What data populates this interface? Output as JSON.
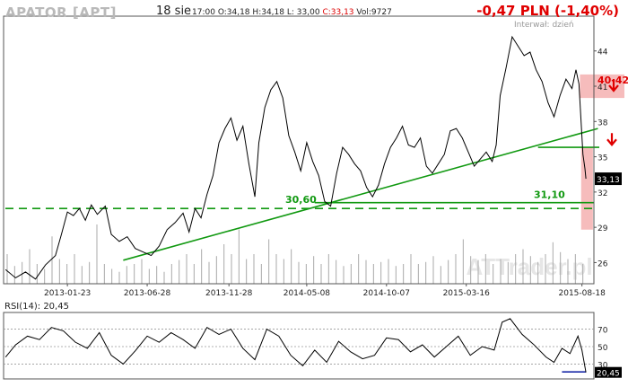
{
  "header": {
    "ticker": "APATOR [APT]",
    "date": "18 sie",
    "time": "17:00",
    "open": "O:34,18",
    "high": "H:34,18",
    "low": "L: 33,00",
    "close": "C:33,13",
    "volume": "Vol:9727",
    "change": "-0,47 PLN (-1,40%)",
    "interval": "Interwał: dzień"
  },
  "colors": {
    "price_line": "#000000",
    "trend_line": "#119911",
    "support_dashed": "#119911",
    "highlight": "#f4b0b0",
    "arrow": "#e00000",
    "volume": "#a9a9a9",
    "rsi_line": "#000000",
    "rsi_marker": "#1a2aa8"
  },
  "chart_data": [
    {
      "type": "line",
      "panel": "price",
      "title": "APATOR [APT]",
      "x_tick_labels": [
        "2013-01-23",
        "2013-06-28",
        "2013-11-28",
        "2014-05-08",
        "2014-10-07",
        "2015-03-16",
        "2015-08-18"
      ],
      "y_tick_labels": [
        "26",
        "29",
        "32",
        "35",
        "38",
        "41",
        "44"
      ],
      "ylim": [
        24.2,
        46.5
      ],
      "last_value_label": "33,13",
      "watermark": "ATTrader.pl",
      "series": [
        {
          "values": [
            [
              2012.75,
              25.4
            ],
            [
              2012.8,
              24.7
            ],
            [
              2012.85,
              25.2
            ],
            [
              2012.9,
              24.6
            ],
            [
              2012.95,
              25.8
            ],
            [
              2013.0,
              26.6
            ],
            [
              2013.03,
              28.4
            ],
            [
              2013.06,
              30.3
            ],
            [
              2013.09,
              30.0
            ],
            [
              2013.12,
              30.6
            ],
            [
              2013.15,
              29.6
            ],
            [
              2013.18,
              30.9
            ],
            [
              2013.21,
              30.1
            ],
            [
              2013.25,
              30.8
            ],
            [
              2013.28,
              28.4
            ],
            [
              2013.32,
              27.8
            ],
            [
              2013.36,
              28.2
            ],
            [
              2013.4,
              27.2
            ],
            [
              2013.44,
              26.9
            ],
            [
              2013.48,
              26.6
            ],
            [
              2013.52,
              27.4
            ],
            [
              2013.56,
              28.8
            ],
            [
              2013.6,
              29.4
            ],
            [
              2013.64,
              30.2
            ],
            [
              2013.67,
              28.6
            ],
            [
              2013.7,
              30.6
            ],
            [
              2013.73,
              29.8
            ],
            [
              2013.76,
              31.8
            ],
            [
              2013.79,
              33.4
            ],
            [
              2013.82,
              36.2
            ],
            [
              2013.85,
              37.4
            ],
            [
              2013.88,
              38.3
            ],
            [
              2013.91,
              36.4
            ],
            [
              2013.94,
              37.6
            ],
            [
              2013.97,
              34.4
            ],
            [
              2014.0,
              31.6
            ],
            [
              2014.02,
              36.2
            ],
            [
              2014.05,
              39.2
            ],
            [
              2014.08,
              40.7
            ],
            [
              2014.11,
              41.4
            ],
            [
              2014.14,
              40.0
            ],
            [
              2014.17,
              36.8
            ],
            [
              2014.2,
              35.4
            ],
            [
              2014.23,
              33.8
            ],
            [
              2014.26,
              36.2
            ],
            [
              2014.29,
              34.6
            ],
            [
              2014.32,
              33.4
            ],
            [
              2014.35,
              31.2
            ],
            [
              2014.38,
              30.8
            ],
            [
              2014.41,
              33.6
            ],
            [
              2014.44,
              35.8
            ],
            [
              2014.47,
              35.2
            ],
            [
              2014.5,
              34.4
            ],
            [
              2014.53,
              33.8
            ],
            [
              2014.56,
              32.4
            ],
            [
              2014.59,
              31.6
            ],
            [
              2014.62,
              32.6
            ],
            [
              2014.65,
              34.4
            ],
            [
              2014.68,
              35.8
            ],
            [
              2014.71,
              36.6
            ],
            [
              2014.74,
              37.6
            ],
            [
              2014.77,
              36.0
            ],
            [
              2014.8,
              35.8
            ],
            [
              2014.83,
              36.6
            ],
            [
              2014.86,
              34.2
            ],
            [
              2014.89,
              33.6
            ],
            [
              2014.92,
              34.4
            ],
            [
              2014.95,
              35.2
            ],
            [
              2014.98,
              37.2
            ],
            [
              2015.01,
              37.4
            ],
            [
              2015.04,
              36.6
            ],
            [
              2015.07,
              35.4
            ],
            [
              2015.1,
              34.2
            ],
            [
              2015.13,
              34.8
            ],
            [
              2015.16,
              35.4
            ],
            [
              2015.19,
              34.6
            ],
            [
              2015.21,
              36.0
            ],
            [
              2015.23,
              40.2
            ],
            [
              2015.26,
              42.6
            ],
            [
              2015.29,
              45.2
            ],
            [
              2015.32,
              44.4
            ],
            [
              2015.35,
              43.6
            ],
            [
              2015.38,
              43.9
            ],
            [
              2015.41,
              42.4
            ],
            [
              2015.44,
              41.4
            ],
            [
              2015.47,
              39.6
            ],
            [
              2015.5,
              38.4
            ],
            [
              2015.53,
              40.2
            ],
            [
              2015.56,
              41.6
            ],
            [
              2015.59,
              40.8
            ],
            [
              2015.61,
              42.4
            ],
            [
              2015.625,
              41.2
            ],
            [
              2015.635,
              38.2
            ],
            [
              2015.645,
              35.2
            ],
            [
              2015.655,
              34.0
            ],
            [
              2015.66,
              33.13
            ]
          ]
        }
      ],
      "annotations": [
        {
          "type": "hline",
          "y": 30.6,
          "style": "dashed",
          "label": "30,60"
        },
        {
          "type": "hline",
          "y": 31.1,
          "style": "solid",
          "label": "31,10"
        },
        {
          "type": "hline",
          "y": 35.8,
          "style": "solid"
        },
        {
          "type": "trendline",
          "from": [
            2013.34,
            26.2
          ],
          "to": [
            2015.72,
            37.4
          ]
        },
        {
          "type": "band",
          "y": [
            40.0,
            42.0
          ],
          "label": "40-42"
        },
        {
          "type": "arrow",
          "y": 41.0,
          "direction": "down"
        },
        {
          "type": "arrow",
          "y": 36.4,
          "direction": "down"
        },
        {
          "type": "rect",
          "x": [
            2015.636,
            2015.695
          ],
          "y": [
            28.8,
            35.8
          ]
        }
      ]
    },
    {
      "type": "bar",
      "panel": "volume",
      "note": "volume bars drawn along bottom of price panel",
      "values": [
        0.3,
        0.18,
        0.22,
        0.35,
        0.2,
        0.15,
        0.48,
        0.25,
        0.2,
        0.3,
        0.18,
        0.22,
        0.6,
        0.2,
        0.15,
        0.12,
        0.18,
        0.2,
        0.25,
        0.15,
        0.18,
        0.12,
        0.2,
        0.24,
        0.3,
        0.2,
        0.35,
        0.22,
        0.28,
        0.4,
        0.3,
        0.55,
        0.25,
        0.3,
        0.2,
        0.45,
        0.3,
        0.25,
        0.35,
        0.22,
        0.2,
        0.28,
        0.2,
        0.3,
        0.24,
        0.18,
        0.2,
        0.3,
        0.24,
        0.2,
        0.22,
        0.25,
        0.18,
        0.2,
        0.3,
        0.2,
        0.22,
        0.28,
        0.18,
        0.24,
        0.3,
        0.45,
        0.28,
        0.24,
        0.3,
        0.2,
        0.25,
        0.22,
        0.3,
        0.35,
        0.28,
        0.22,
        0.3,
        0.42,
        0.32,
        0.25,
        0.3,
        0.2
      ]
    },
    {
      "type": "line",
      "panel": "rsi",
      "title": "RSI(14): 20,45",
      "y_tick_labels": [
        "70",
        "50",
        "30"
      ],
      "ylim": [
        15,
        85
      ],
      "hlines": [
        70,
        50,
        30
      ],
      "last_value_label": "20,45",
      "series": [
        {
          "values": [
            [
              2012.75,
              38
            ],
            [
              2012.8,
              52
            ],
            [
              2012.86,
              62
            ],
            [
              2012.92,
              58
            ],
            [
              2012.98,
              72
            ],
            [
              2013.04,
              68
            ],
            [
              2013.1,
              55
            ],
            [
              2013.16,
              48
            ],
            [
              2013.22,
              66
            ],
            [
              2013.28,
              40
            ],
            [
              2013.34,
              30
            ],
            [
              2013.4,
              45
            ],
            [
              2013.46,
              62
            ],
            [
              2013.52,
              55
            ],
            [
              2013.58,
              66
            ],
            [
              2013.64,
              58
            ],
            [
              2013.7,
              48
            ],
            [
              2013.76,
              72
            ],
            [
              2013.82,
              64
            ],
            [
              2013.88,
              70
            ],
            [
              2013.94,
              48
            ],
            [
              2014.0,
              35
            ],
            [
              2014.06,
              70
            ],
            [
              2014.12,
              62
            ],
            [
              2014.18,
              40
            ],
            [
              2014.24,
              28
            ],
            [
              2014.3,
              46
            ],
            [
              2014.36,
              32
            ],
            [
              2014.42,
              56
            ],
            [
              2014.48,
              44
            ],
            [
              2014.54,
              36
            ],
            [
              2014.6,
              40
            ],
            [
              2014.66,
              60
            ],
            [
              2014.72,
              58
            ],
            [
              2014.78,
              44
            ],
            [
              2014.84,
              52
            ],
            [
              2014.9,
              38
            ],
            [
              2014.96,
              50
            ],
            [
              2015.02,
              62
            ],
            [
              2015.08,
              40
            ],
            [
              2015.14,
              50
            ],
            [
              2015.2,
              46
            ],
            [
              2015.24,
              78
            ],
            [
              2015.28,
              82
            ],
            [
              2015.34,
              64
            ],
            [
              2015.4,
              52
            ],
            [
              2015.46,
              38
            ],
            [
              2015.5,
              32
            ],
            [
              2015.54,
              48
            ],
            [
              2015.58,
              42
            ],
            [
              2015.62,
              62
            ],
            [
              2015.64,
              46
            ],
            [
              2015.66,
              20.45
            ]
          ]
        }
      ],
      "annotations": [
        {
          "type": "hline",
          "y": 21,
          "x": [
            2015.54,
            2015.66
          ]
        }
      ]
    }
  ]
}
